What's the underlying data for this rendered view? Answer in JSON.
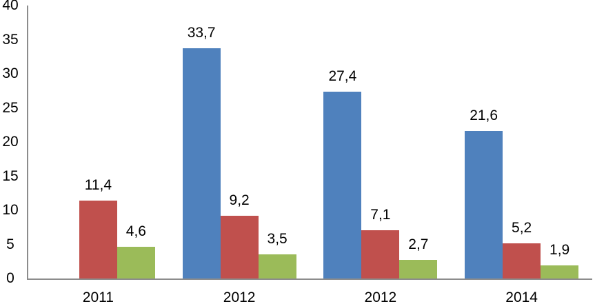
{
  "chart_data": {
    "type": "bar",
    "title": "",
    "xlabel": "",
    "ylabel": "",
    "categories": [
      "2011",
      "2012",
      "2012",
      "2014"
    ],
    "series": [
      {
        "name": "blue-series",
        "color": "#4F81BD",
        "values": [
          null,
          33.7,
          27.4,
          21.6
        ],
        "value_labels": [
          "",
          "33,7",
          "27,4",
          "21,6"
        ]
      },
      {
        "name": "red-series",
        "color": "#C0504D",
        "values": [
          11.4,
          9.2,
          7.1,
          5.2
        ],
        "value_labels": [
          "11,4",
          "9,2",
          "7,1",
          "5,2"
        ]
      },
      {
        "name": "green-series",
        "color": "#9BBB59",
        "values": [
          4.6,
          3.5,
          2.7,
          1.9
        ],
        "value_labels": [
          "4,6",
          "3,5",
          "2,7",
          "1,9"
        ]
      }
    ],
    "y_axis": {
      "min": 0,
      "max": 40,
      "step": 5,
      "tick_labels": [
        "0",
        "5",
        "10",
        "15",
        "20",
        "25",
        "30",
        "35",
        "40"
      ]
    },
    "ylim": [
      0,
      40
    ],
    "grid": false,
    "legend": "none",
    "decimal_separator": ",",
    "axis_color": "#8C8C8C",
    "text_color": "#000000"
  }
}
